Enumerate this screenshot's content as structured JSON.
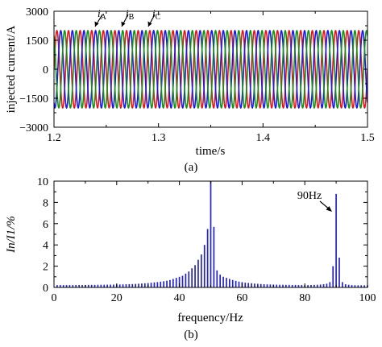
{
  "chart_data": [
    {
      "type": "line",
      "caption": "(a)",
      "xlabel": "time/s",
      "ylabel": "injected current/A",
      "xlim": [
        1.2,
        1.5
      ],
      "ylim": [
        -3000,
        3000
      ],
      "xticks": [
        "1.2",
        "1.3",
        "1.4",
        "1.5"
      ],
      "yticks": [
        "3000",
        "1500",
        "0",
        "−1500",
        "−3000"
      ],
      "grid": false,
      "series": [
        {
          "name": "iA",
          "color": "#e8141b",
          "frequency_hz": 90,
          "amplitude_a": 2000,
          "phase_deg": 0
        },
        {
          "name": "iB",
          "color": "#1919e6",
          "frequency_hz": 90,
          "amplitude_a": 2000,
          "phase_deg": -120
        },
        {
          "name": "iC",
          "color": "#129112",
          "frequency_hz": 90,
          "amplitude_a": 2000,
          "phase_deg": 120
        }
      ],
      "annotations": [
        {
          "letter": "i",
          "sub": "A"
        },
        {
          "letter": "i",
          "sub": "B"
        },
        {
          "letter": "i",
          "sub": "C"
        }
      ]
    },
    {
      "type": "bar",
      "caption": "(b)",
      "xlabel": "frequency/Hz",
      "ylabel": "In/I1/%",
      "xlim": [
        0,
        100
      ],
      "ylim": [
        0,
        10
      ],
      "xticks": [
        "0",
        "20",
        "40",
        "60",
        "80",
        "100"
      ],
      "yticks": [
        "0",
        "2",
        "4",
        "6",
        "8",
        "10"
      ],
      "bar_color": "#2424c4",
      "annotation": "90Hz",
      "x": [
        1,
        2,
        3,
        4,
        5,
        6,
        7,
        8,
        9,
        10,
        11,
        12,
        13,
        14,
        15,
        16,
        17,
        18,
        19,
        20,
        21,
        22,
        23,
        24,
        25,
        26,
        27,
        28,
        29,
        30,
        31,
        32,
        33,
        34,
        35,
        36,
        37,
        38,
        39,
        40,
        41,
        42,
        43,
        44,
        45,
        46,
        47,
        48,
        49,
        50,
        51,
        52,
        53,
        54,
        55,
        56,
        57,
        58,
        59,
        60,
        61,
        62,
        63,
        64,
        65,
        66,
        67,
        68,
        69,
        70,
        71,
        72,
        73,
        74,
        75,
        76,
        77,
        78,
        79,
        80,
        81,
        82,
        83,
        84,
        85,
        86,
        87,
        88,
        89,
        90,
        91,
        92,
        93,
        94,
        95,
        96,
        97,
        98,
        99,
        100
      ],
      "values": [
        0.22,
        0.22,
        0.22,
        0.22,
        0.22,
        0.22,
        0.23,
        0.23,
        0.23,
        0.23,
        0.24,
        0.24,
        0.24,
        0.25,
        0.25,
        0.25,
        0.26,
        0.26,
        0.27,
        0.28,
        0.28,
        0.29,
        0.3,
        0.31,
        0.32,
        0.33,
        0.35,
        0.37,
        0.39,
        0.41,
        0.44,
        0.47,
        0.5,
        0.54,
        0.58,
        0.63,
        0.7,
        0.8,
        0.9,
        1.0,
        1.1,
        1.3,
        1.5,
        1.8,
        2.1,
        2.6,
        3.1,
        4.0,
        5.5,
        10.0,
        5.7,
        1.6,
        1.2,
        1.0,
        0.9,
        0.8,
        0.7,
        0.62,
        0.55,
        0.5,
        0.45,
        0.42,
        0.39,
        0.36,
        0.34,
        0.32,
        0.3,
        0.29,
        0.28,
        0.27,
        0.26,
        0.25,
        0.25,
        0.24,
        0.24,
        0.23,
        0.23,
        0.22,
        0.22,
        0.22,
        0.22,
        0.23,
        0.24,
        0.25,
        0.27,
        0.3,
        0.35,
        0.5,
        2.0,
        8.8,
        2.8,
        0.5,
        0.3,
        0.25,
        0.22,
        0.21,
        0.2,
        0.2,
        0.2,
        0.2
      ]
    }
  ]
}
